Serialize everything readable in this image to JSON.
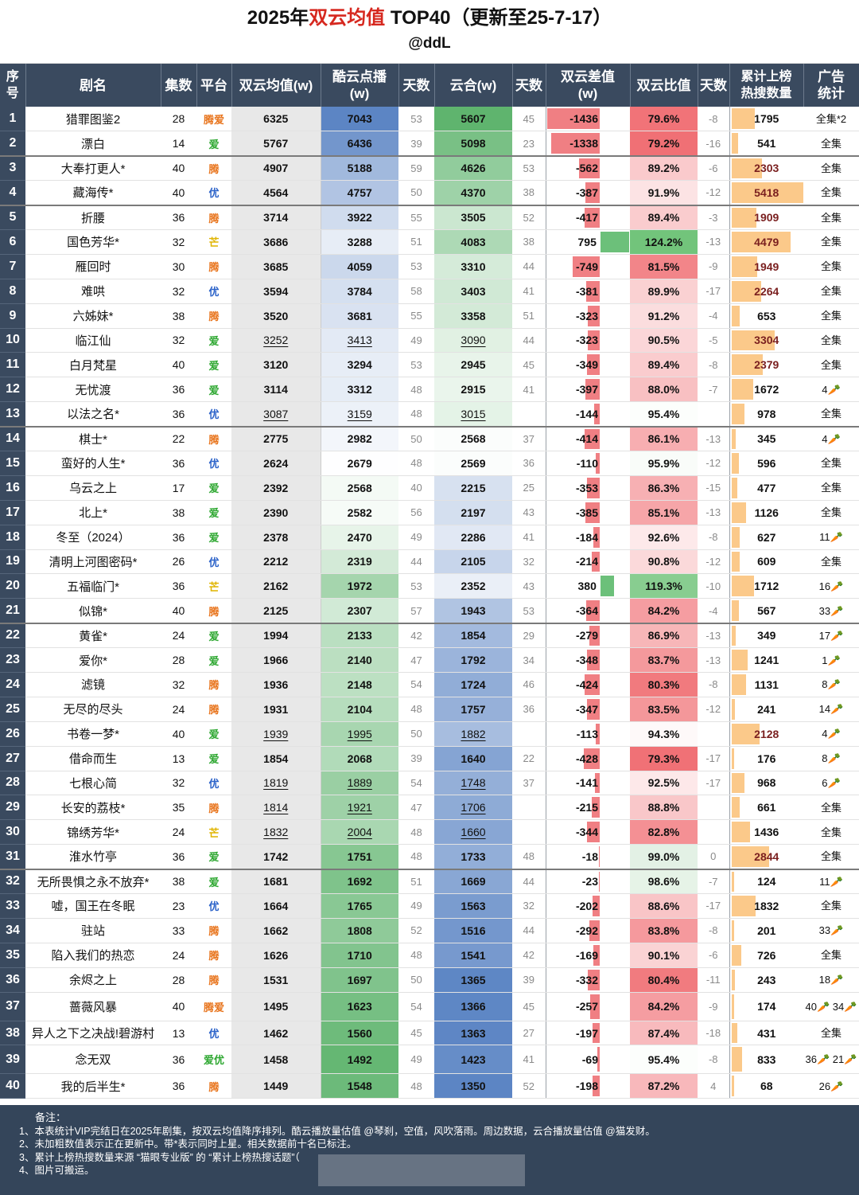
{
  "header": {
    "title_a": "2025年",
    "title_b": "双云均值",
    "title_c": " TOP40（更新至25-7-17）",
    "subtitle": "@ddL"
  },
  "columns": [
    "序号",
    "剧名",
    "集数",
    "平台",
    "双云均值(w)",
    "酷云点播(w)",
    "天数",
    "云合(w)",
    "天数",
    "双云差值(w)",
    "双云比值",
    "天数",
    "累计上榜热搜数量",
    "广告统计"
  ],
  "colors": {
    "header_bg": "#3a4a5f",
    "platform_tx": "#e8741c",
    "platform_iq": "#2fa832",
    "platform_yk": "#2c63c9",
    "platform_mg": "#e0b400",
    "diff_neg": "#f07f83",
    "diff_pos": "#6cc07a",
    "hot_bar": "#fbc98a",
    "avg_bg": "#e8e8e8"
  },
  "chart_data": {
    "type": "table",
    "title": "2025年双云均值 TOP40（更新至25-7-17）",
    "rows": [
      {
        "rank": "1",
        "name": "猎罪图鉴2",
        "eps": "28",
        "plat": "腾爱",
        "avg": "6325",
        "ky": "7043",
        "kyd": "53",
        "yh": "5607",
        "yhd": "45",
        "diff": "-1436",
        "ratio": "79.6%",
        "rd": "-8",
        "hot": "1795",
        "ad": "全集*2"
      },
      {
        "rank": "2",
        "name": "漂白",
        "eps": "14",
        "plat": "爱",
        "avg": "5767",
        "ky": "6436",
        "kyd": "39",
        "yh": "5098",
        "yhd": "23",
        "diff": "-1338",
        "ratio": "79.2%",
        "rd": "-16",
        "hot": "541",
        "ad": "全集"
      },
      {
        "rank": "3",
        "name": "大奉打更人*",
        "eps": "40",
        "plat": "腾",
        "avg": "4907",
        "ky": "5188",
        "kyd": "59",
        "yh": "4626",
        "yhd": "53",
        "diff": "-562",
        "ratio": "89.2%",
        "rd": "-6",
        "hot": "2303",
        "ad": "全集"
      },
      {
        "rank": "4",
        "name": "藏海传*",
        "eps": "40",
        "plat": "优",
        "avg": "4564",
        "ky": "4757",
        "kyd": "50",
        "yh": "4370",
        "yhd": "38",
        "diff": "-387",
        "ratio": "91.9%",
        "rd": "-12",
        "hot": "5418",
        "ad": "全集"
      },
      {
        "rank": "5",
        "name": "折腰",
        "eps": "36",
        "plat": "腾",
        "avg": "3714",
        "ky": "3922",
        "kyd": "55",
        "yh": "3505",
        "yhd": "52",
        "diff": "-417",
        "ratio": "89.4%",
        "rd": "-3",
        "hot": "1909",
        "ad": "全集"
      },
      {
        "rank": "6",
        "name": "国色芳华*",
        "eps": "32",
        "plat": "芒",
        "avg": "3686",
        "ky": "3288",
        "kyd": "51",
        "yh": "4083",
        "yhd": "38",
        "diff": "795",
        "ratio": "124.2%",
        "rd": "-13",
        "hot": "4479",
        "ad": "全集"
      },
      {
        "rank": "7",
        "name": "雁回时",
        "eps": "30",
        "plat": "腾",
        "avg": "3685",
        "ky": "4059",
        "kyd": "53",
        "yh": "3310",
        "yhd": "44",
        "diff": "-749",
        "ratio": "81.5%",
        "rd": "-9",
        "hot": "1949",
        "ad": "全集"
      },
      {
        "rank": "8",
        "name": "难哄",
        "eps": "32",
        "plat": "优",
        "avg": "3594",
        "ky": "3784",
        "kyd": "58",
        "yh": "3403",
        "yhd": "41",
        "diff": "-381",
        "ratio": "89.9%",
        "rd": "-17",
        "hot": "2264",
        "ad": "全集"
      },
      {
        "rank": "9",
        "name": "六姊妹*",
        "eps": "38",
        "plat": "腾",
        "avg": "3520",
        "ky": "3681",
        "kyd": "55",
        "yh": "3358",
        "yhd": "51",
        "diff": "-323",
        "ratio": "91.2%",
        "rd": "-4",
        "hot": "653",
        "ad": "全集"
      },
      {
        "rank": "10",
        "name": "临江仙",
        "eps": "32",
        "plat": "爱",
        "avg": "3252",
        "ky": "3413",
        "kyd": "49",
        "yh": "3090",
        "yhd": "44",
        "diff": "-323",
        "ratio": "90.5%",
        "rd": "-5",
        "hot": "3304",
        "ad": "全集"
      },
      {
        "rank": "11",
        "name": "白月梵星",
        "eps": "40",
        "plat": "爱",
        "avg": "3120",
        "ky": "3294",
        "kyd": "53",
        "yh": "2945",
        "yhd": "45",
        "diff": "-349",
        "ratio": "89.4%",
        "rd": "-8",
        "hot": "2379",
        "ad": "全集"
      },
      {
        "rank": "12",
        "name": "无忧渡",
        "eps": "36",
        "plat": "爱",
        "avg": "3114",
        "ky": "3312",
        "kyd": "48",
        "yh": "2915",
        "yhd": "41",
        "diff": "-397",
        "ratio": "88.0%",
        "rd": "-7",
        "hot": "1672",
        "ad": "4🥕"
      },
      {
        "rank": "13",
        "name": "以法之名*",
        "eps": "36",
        "plat": "优",
        "avg": "3087",
        "ky": "3159",
        "kyd": "48",
        "yh": "3015",
        "yhd": "",
        "diff": "-144",
        "ratio": "95.4%",
        "rd": "",
        "hot": "978",
        "ad": "全集"
      },
      {
        "rank": "14",
        "name": "棋士*",
        "eps": "22",
        "plat": "腾",
        "avg": "2775",
        "ky": "2982",
        "kyd": "50",
        "yh": "2568",
        "yhd": "37",
        "diff": "-414",
        "ratio": "86.1%",
        "rd": "-13",
        "hot": "345",
        "ad": "4🥕"
      },
      {
        "rank": "15",
        "name": "蛮好的人生*",
        "eps": "36",
        "plat": "优",
        "avg": "2624",
        "ky": "2679",
        "kyd": "48",
        "yh": "2569",
        "yhd": "36",
        "diff": "-110",
        "ratio": "95.9%",
        "rd": "-12",
        "hot": "596",
        "ad": "全集"
      },
      {
        "rank": "16",
        "name": "乌云之上",
        "eps": "17",
        "plat": "爱",
        "avg": "2392",
        "ky": "2568",
        "kyd": "40",
        "yh": "2215",
        "yhd": "25",
        "diff": "-353",
        "ratio": "86.3%",
        "rd": "-15",
        "hot": "477",
        "ad": "全集"
      },
      {
        "rank": "17",
        "name": "北上*",
        "eps": "38",
        "plat": "爱",
        "avg": "2390",
        "ky": "2582",
        "kyd": "56",
        "yh": "2197",
        "yhd": "43",
        "diff": "-385",
        "ratio": "85.1%",
        "rd": "-13",
        "hot": "1126",
        "ad": "全集"
      },
      {
        "rank": "18",
        "name": "冬至（2024）",
        "eps": "36",
        "plat": "爱",
        "avg": "2378",
        "ky": "2470",
        "kyd": "49",
        "yh": "2286",
        "yhd": "41",
        "diff": "-184",
        "ratio": "92.6%",
        "rd": "-8",
        "hot": "627",
        "ad": "11🥕"
      },
      {
        "rank": "19",
        "name": "清明上河图密码*",
        "eps": "26",
        "plat": "优",
        "avg": "2212",
        "ky": "2319",
        "kyd": "44",
        "yh": "2105",
        "yhd": "32",
        "diff": "-214",
        "ratio": "90.8%",
        "rd": "-12",
        "hot": "609",
        "ad": "全集"
      },
      {
        "rank": "20",
        "name": "五福临门*",
        "eps": "36",
        "plat": "芒",
        "avg": "2162",
        "ky": "1972",
        "kyd": "53",
        "yh": "2352",
        "yhd": "43",
        "diff": "380",
        "ratio": "119.3%",
        "rd": "-10",
        "hot": "1712",
        "ad": "16🥕"
      },
      {
        "rank": "21",
        "name": "似锦*",
        "eps": "40",
        "plat": "腾",
        "avg": "2125",
        "ky": "2307",
        "kyd": "57",
        "yh": "1943",
        "yhd": "53",
        "diff": "-364",
        "ratio": "84.2%",
        "rd": "-4",
        "hot": "567",
        "ad": "33🥕"
      },
      {
        "rank": "22",
        "name": "黄雀*",
        "eps": "24",
        "plat": "爱",
        "avg": "1994",
        "ky": "2133",
        "kyd": "42",
        "yh": "1854",
        "yhd": "29",
        "diff": "-279",
        "ratio": "86.9%",
        "rd": "-13",
        "hot": "349",
        "ad": "17🥕"
      },
      {
        "rank": "23",
        "name": "爱你*",
        "eps": "28",
        "plat": "爱",
        "avg": "1966",
        "ky": "2140",
        "kyd": "47",
        "yh": "1792",
        "yhd": "34",
        "diff": "-348",
        "ratio": "83.7%",
        "rd": "-13",
        "hot": "1241",
        "ad": "1🥕"
      },
      {
        "rank": "24",
        "name": "滤镜",
        "eps": "32",
        "plat": "腾",
        "avg": "1936",
        "ky": "2148",
        "kyd": "54",
        "yh": "1724",
        "yhd": "46",
        "diff": "-424",
        "ratio": "80.3%",
        "rd": "-8",
        "hot": "1131",
        "ad": "8🥕"
      },
      {
        "rank": "25",
        "name": "无尽的尽头",
        "eps": "24",
        "plat": "腾",
        "avg": "1931",
        "ky": "2104",
        "kyd": "48",
        "yh": "1757",
        "yhd": "36",
        "diff": "-347",
        "ratio": "83.5%",
        "rd": "-12",
        "hot": "241",
        "ad": "14🥕"
      },
      {
        "rank": "26",
        "name": "书卷一梦*",
        "eps": "40",
        "plat": "爱",
        "avg": "1939",
        "ky": "1995",
        "kyd": "50",
        "yh": "1882",
        "yhd": "",
        "diff": "-113",
        "ratio": "94.3%",
        "rd": "",
        "hot": "2128",
        "ad": "4🥕"
      },
      {
        "rank": "27",
        "name": "借命而生",
        "eps": "13",
        "plat": "爱",
        "avg": "1854",
        "ky": "2068",
        "kyd": "39",
        "yh": "1640",
        "yhd": "22",
        "diff": "-428",
        "ratio": "79.3%",
        "rd": "-17",
        "hot": "176",
        "ad": "8🥕"
      },
      {
        "rank": "28",
        "name": "七根心简",
        "eps": "32",
        "plat": "优",
        "avg": "1819",
        "ky": "1889",
        "kyd": "54",
        "yh": "1748",
        "yhd": "37",
        "diff": "-141",
        "ratio": "92.5%",
        "rd": "-17",
        "hot": "968",
        "ad": "6🥕"
      },
      {
        "rank": "29",
        "name": "长安的荔枝*",
        "eps": "35",
        "plat": "腾",
        "avg": "1814",
        "ky": "1921",
        "kyd": "47",
        "yh": "1706",
        "yhd": "",
        "diff": "-215",
        "ratio": "88.8%",
        "rd": "",
        "hot": "661",
        "ad": "全集"
      },
      {
        "rank": "30",
        "name": "锦绣芳华*",
        "eps": "24",
        "plat": "芒",
        "avg": "1832",
        "ky": "2004",
        "kyd": "48",
        "yh": "1660",
        "yhd": "",
        "diff": "-344",
        "ratio": "82.8%",
        "rd": "",
        "hot": "1436",
        "ad": "全集"
      },
      {
        "rank": "31",
        "name": "淮水竹亭",
        "eps": "36",
        "plat": "爱",
        "avg": "1742",
        "ky": "1751",
        "kyd": "48",
        "yh": "1733",
        "yhd": "48",
        "diff": "-18",
        "ratio": "99.0%",
        "rd": "0",
        "hot": "2844",
        "ad": "全集"
      },
      {
        "rank": "32",
        "name": "无所畏惧之永不放弃*",
        "eps": "38",
        "plat": "爱",
        "avg": "1681",
        "ky": "1692",
        "kyd": "51",
        "yh": "1669",
        "yhd": "44",
        "diff": "-23",
        "ratio": "98.6%",
        "rd": "-7",
        "hot": "124",
        "ad": "11🥕"
      },
      {
        "rank": "33",
        "name": "嘘，国王在冬眠",
        "eps": "23",
        "plat": "优",
        "avg": "1664",
        "ky": "1765",
        "kyd": "49",
        "yh": "1563",
        "yhd": "32",
        "diff": "-202",
        "ratio": "88.6%",
        "rd": "-17",
        "hot": "1832",
        "ad": "全集"
      },
      {
        "rank": "34",
        "name": "驻站",
        "eps": "33",
        "plat": "腾",
        "avg": "1662",
        "ky": "1808",
        "kyd": "52",
        "yh": "1516",
        "yhd": "44",
        "diff": "-292",
        "ratio": "83.8%",
        "rd": "-8",
        "hot": "201",
        "ad": "33🥕"
      },
      {
        "rank": "35",
        "name": "陷入我们的热恋",
        "eps": "24",
        "plat": "腾",
        "avg": "1626",
        "ky": "1710",
        "kyd": "48",
        "yh": "1541",
        "yhd": "42",
        "diff": "-169",
        "ratio": "90.1%",
        "rd": "-6",
        "hot": "726",
        "ad": "全集"
      },
      {
        "rank": "36",
        "name": "余烬之上",
        "eps": "28",
        "plat": "腾",
        "avg": "1531",
        "ky": "1697",
        "kyd": "50",
        "yh": "1365",
        "yhd": "39",
        "diff": "-332",
        "ratio": "80.4%",
        "rd": "-11",
        "hot": "243",
        "ad": "18🥕"
      },
      {
        "rank": "37",
        "name": "蔷薇风暴",
        "eps": "40",
        "plat": "腾爱",
        "avg": "1495",
        "ky": "1623",
        "kyd": "54",
        "yh": "1366",
        "yhd": "45",
        "diff": "-257",
        "ratio": "84.2%",
        "rd": "-9",
        "hot": "174",
        "ad": "40🥕 34🥕"
      },
      {
        "rank": "38",
        "name": "异人之下之决战!碧游村",
        "eps": "13",
        "plat": "优",
        "avg": "1462",
        "ky": "1560",
        "kyd": "45",
        "yh": "1363",
        "yhd": "27",
        "diff": "-197",
        "ratio": "87.4%",
        "rd": "-18",
        "hot": "431",
        "ad": "全集"
      },
      {
        "rank": "39",
        "name": "念无双",
        "eps": "36",
        "plat": "爱优",
        "avg": "1458",
        "ky": "1492",
        "kyd": "49",
        "yh": "1423",
        "yhd": "41",
        "diff": "-69",
        "ratio": "95.4%",
        "rd": "-8",
        "hot": "833",
        "ad": "36🥕 21🥕"
      },
      {
        "rank": "40",
        "name": "我的后半生*",
        "eps": "36",
        "plat": "腾",
        "avg": "1449",
        "ky": "1548",
        "kyd": "48",
        "yh": "1350",
        "yhd": "52",
        "diff": "-198",
        "ratio": "87.2%",
        "rd": "4",
        "hot": "68",
        "ad": "26🥕"
      }
    ]
  },
  "notes": {
    "title": "备注：",
    "l1": "1、本表统计VIP完结日在2025年剧集，按双云均值降序排列。酷云播放量估值 @琴刹，空值，风吹落雨。周边数据，云合播放量估值 @猫发财。",
    "l2": "2、未加粗数值表示正在更新中。带*表示同时上星。相关数据前十名已标注。",
    "l3": "3、累计上榜热搜数量来源 “猫眼专业版” 的 “累计上榜热搜话题”（",
    "l4": "4、图片可搬运。"
  }
}
